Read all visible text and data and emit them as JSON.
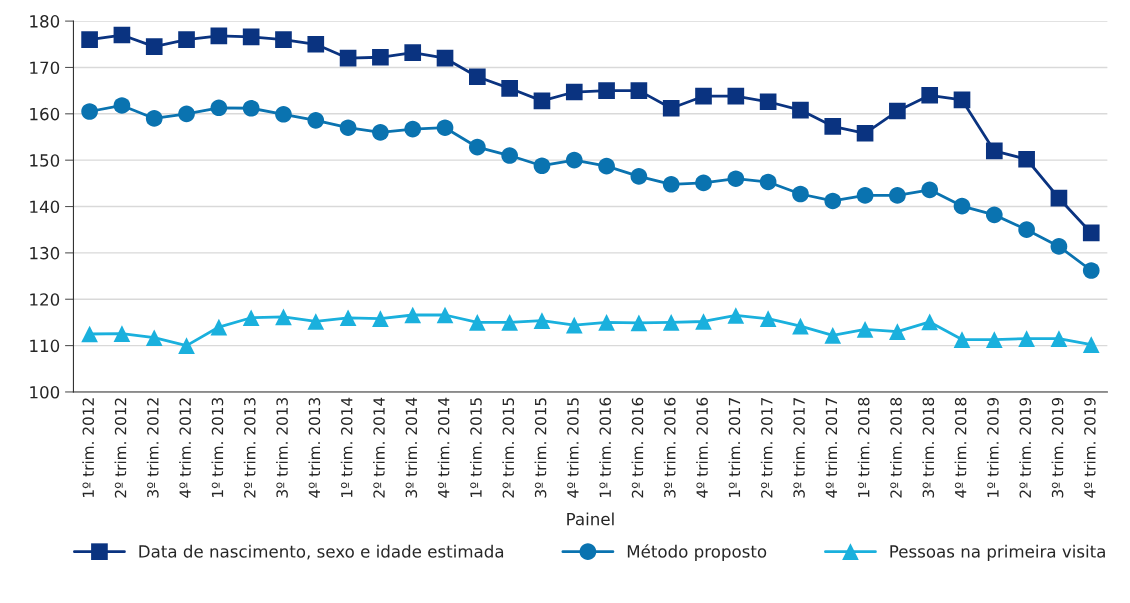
{
  "chart_data": {
    "type": "line",
    "xlabel": "Painel",
    "categories": [
      "1º trim. 2012",
      "2º trim. 2012",
      "3º trim. 2012",
      "4º trim. 2012",
      "1º trim. 2013",
      "2º trim. 2013",
      "3º trim. 2013",
      "4º trim. 2013",
      "1º trim. 2014",
      "2º trim. 2014",
      "3º trim. 2014",
      "4º trim. 2014",
      "1º trim. 2015",
      "2º trim. 2015",
      "3º trim. 2015",
      "4º trim. 2015",
      "1º trim. 2016",
      "2º trim. 2016",
      "3º trim. 2016",
      "4º trim. 2016",
      "1º trim. 2017",
      "2º trim. 2017",
      "3º trim. 2017",
      "4º trim. 2017",
      "1º trim. 2018",
      "2º trim. 2018",
      "3º trim. 2018",
      "4º trim. 2018",
      "1º trim. 2019",
      "2º trim. 2019",
      "3º trim. 2019",
      "4º trim. 2019"
    ],
    "series": [
      {
        "name": "Data de nascimento, sexo e idade estimada",
        "color": "#0a3380",
        "marker": "square",
        "values": [
          176,
          177,
          174.5,
          176,
          176.8,
          176.6,
          176,
          175,
          172,
          172.2,
          173.2,
          172,
          168,
          165.5,
          162.8,
          164.7,
          165,
          165,
          161.2,
          163.8,
          163.8,
          162.6,
          160.8,
          157.3,
          155.8,
          160.6,
          164,
          163,
          152,
          150.2,
          141.8,
          134.3
        ]
      },
      {
        "name": "Método proposto",
        "color": "#0a73b0",
        "marker": "circle",
        "values": [
          160.5,
          161.8,
          159,
          160,
          161.3,
          161.2,
          159.9,
          158.6,
          157,
          156,
          156.7,
          157,
          152.8,
          151,
          148.8,
          150,
          148.7,
          146.5,
          144.8,
          145.1,
          146,
          145.3,
          142.7,
          141.2,
          142.4,
          142.4,
          143.6,
          140.1,
          138.2,
          135,
          131.4,
          126.2
        ]
      },
      {
        "name": "Pessoas na primeira visita",
        "color": "#1ab0dd",
        "marker": "triangle",
        "values": [
          112.5,
          112.6,
          111.7,
          110,
          114,
          116,
          116.2,
          115.2,
          116,
          115.8,
          116.6,
          116.6,
          115,
          115,
          115.4,
          114.4,
          115,
          114.9,
          115,
          115.2,
          116.5,
          115.8,
          114.2,
          112.2,
          113.5,
          113,
          115.1,
          111.3,
          111.3,
          111.5,
          111.5,
          110.2
        ]
      }
    ],
    "ylim": [
      100,
      180
    ],
    "yticks": [
      100,
      110,
      120,
      130,
      140,
      150,
      160,
      170,
      180
    ],
    "grid": "y",
    "legend": "bottom",
    "line_style": "solid"
  }
}
